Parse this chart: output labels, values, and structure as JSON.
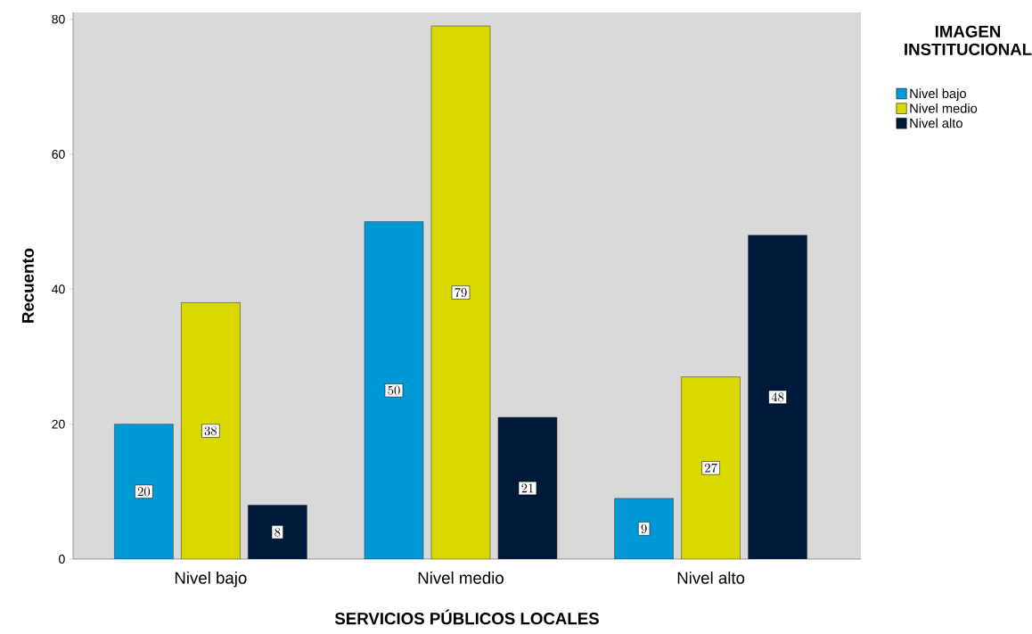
{
  "chart_data": {
    "type": "bar",
    "xlabel": "SERVICIOS PÚBLICOS LOCALES",
    "ylabel": "Recuento",
    "legend_title": "IMAGEN INSTITUCIONAL",
    "categories": [
      "Nivel bajo",
      "Nivel medio",
      "Nivel alto"
    ],
    "series": [
      {
        "name": "Nivel bajo",
        "color": "#0099d6",
        "values": [
          20,
          50,
          9
        ]
      },
      {
        "name": "Nivel medio",
        "color": "#d9d900",
        "values": [
          38,
          79,
          27
        ]
      },
      {
        "name": "Nivel alto",
        "color": "#001a3c",
        "values": [
          8,
          21,
          48
        ]
      }
    ],
    "ylim": [
      0,
      81
    ],
    "yticks": [
      0,
      20,
      40,
      60,
      80
    ],
    "data_labels": true,
    "legend": "top right"
  }
}
